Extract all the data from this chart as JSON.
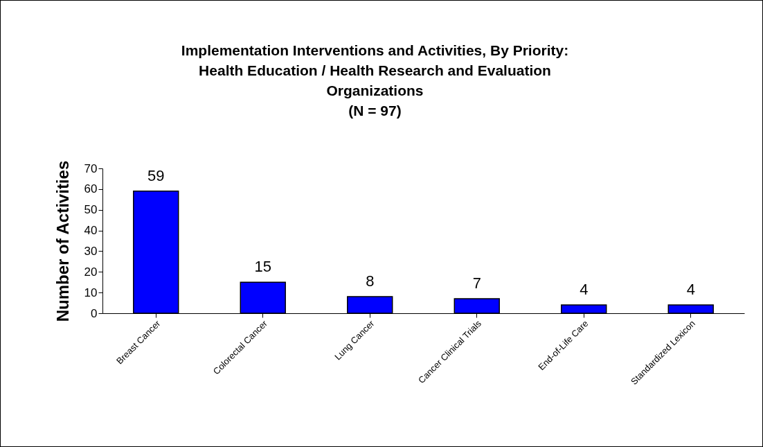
{
  "chart_data": {
    "type": "bar",
    "title": "Implementation Interventions and Activities, By Priority: Health Education / Health Research and Evaluation Organizations",
    "subtitle": "(N = 97)",
    "ylabel": "Number of Activities",
    "categories": [
      "Breast Cancer",
      "Colorectal Cancer",
      "Lung Cancer",
      "Cancer Clinical Trials",
      "End-of-Life Care",
      "Standardized Lexicon"
    ],
    "values": [
      59,
      15,
      8,
      7,
      4,
      4
    ],
    "color": "#0000ff",
    "ylim": [
      0,
      70
    ],
    "yticks": [
      0,
      10,
      20,
      30,
      40,
      50,
      60,
      70
    ],
    "data_labels": true,
    "grid": false
  }
}
